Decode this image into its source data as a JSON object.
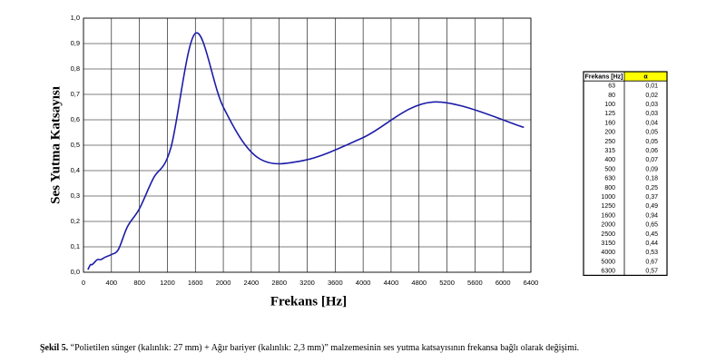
{
  "chart_data": {
    "type": "line",
    "ylabel": "Ses Yutma Katsayısı",
    "xlabel": "Frekans [Hz]",
    "x": [
      63,
      80,
      100,
      125,
      160,
      200,
      250,
      315,
      400,
      500,
      630,
      800,
      1000,
      1250,
      1600,
      2000,
      2500,
      3150,
      4000,
      5000,
      6300
    ],
    "series": [
      {
        "color": "#1c1ca8",
        "values": [
          0.01,
          0.02,
          0.03,
          0.03,
          0.04,
          0.05,
          0.05,
          0.06,
          0.07,
          0.09,
          0.18,
          0.25,
          0.37,
          0.49,
          0.94,
          0.65,
          0.45,
          0.44,
          0.53,
          0.67,
          0.57
        ]
      }
    ],
    "xlim": [
      0,
      6400
    ],
    "xticks": [
      0,
      400,
      800,
      1200,
      1600,
      2000,
      2400,
      2800,
      3200,
      3600,
      4000,
      4400,
      4800,
      5200,
      5600,
      6000,
      6400
    ],
    "ylim": [
      0,
      1
    ],
    "yticks": [
      {
        "value": 0,
        "label": "0,0"
      },
      {
        "value": 0.1,
        "label": "0,1"
      },
      {
        "value": 0.2,
        "label": "0,2"
      },
      {
        "value": 0.3,
        "label": "0,3"
      },
      {
        "value": 0.4,
        "label": "0,4"
      },
      {
        "value": 0.5,
        "label": "0,5"
      },
      {
        "value": 0.6,
        "label": "0,6"
      },
      {
        "value": 0.7,
        "label": "0,7"
      },
      {
        "value": 0.8,
        "label": "0,8"
      },
      {
        "value": 0.9,
        "label": "0,9"
      },
      {
        "value": 1,
        "label": "1,0"
      }
    ],
    "grid": true
  },
  "table": {
    "header": [
      "Frekans [Hz]",
      "α"
    ],
    "rows": [
      [
        "63",
        "0,01"
      ],
      [
        "80",
        "0,02"
      ],
      [
        "100",
        "0,03"
      ],
      [
        "125",
        "0,03"
      ],
      [
        "160",
        "0,04"
      ],
      [
        "200",
        "0,05"
      ],
      [
        "250",
        "0,05"
      ],
      [
        "315",
        "0,06"
      ],
      [
        "400",
        "0,07"
      ],
      [
        "500",
        "0,09"
      ],
      [
        "630",
        "0,18"
      ],
      [
        "800",
        "0,25"
      ],
      [
        "1000",
        "0,37"
      ],
      [
        "1250",
        "0,49"
      ],
      [
        "1600",
        "0,94"
      ],
      [
        "2000",
        "0,65"
      ],
      [
        "2500",
        "0,45"
      ],
      [
        "3150",
        "0,44"
      ],
      [
        "4000",
        "0,53"
      ],
      [
        "5000",
        "0,67"
      ],
      [
        "6300",
        "0,57"
      ]
    ]
  },
  "caption": {
    "label": "Şekil 5.",
    "text": "“Polietilen sünger (kalınlık: 27 mm) + Ağır bariyer (kalınlık: 2,3 mm)” malzemesinin ses yutma katsayısının frekansa bağlı olarak değişimi."
  }
}
